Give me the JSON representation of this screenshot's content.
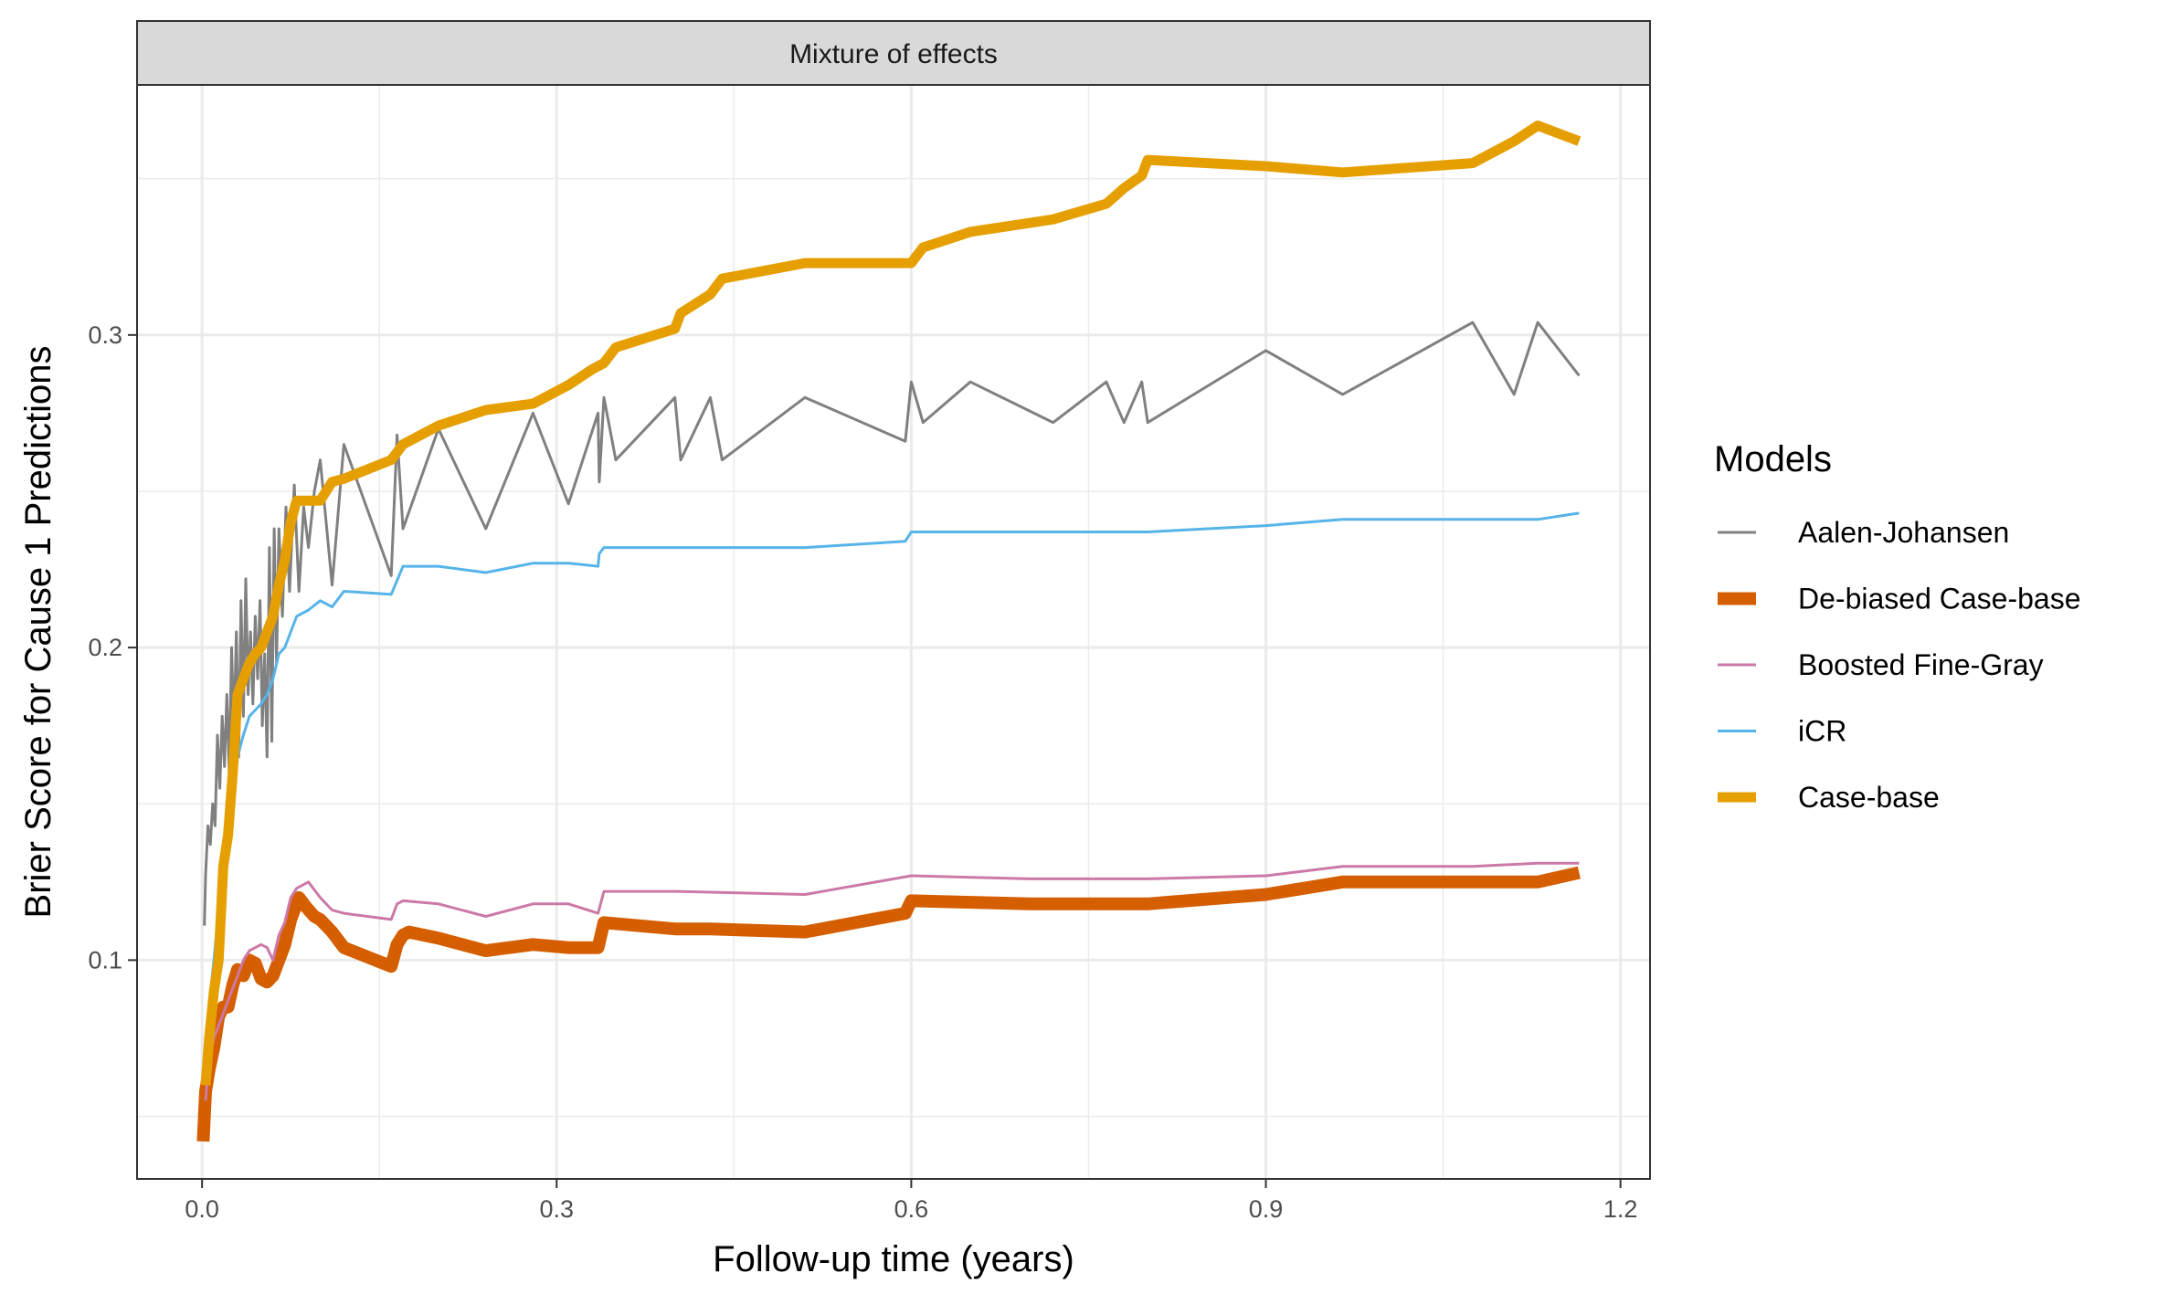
{
  "chart_data": {
    "type": "line",
    "facet_title": "Mixture of effects",
    "xlabel": "Follow-up time (years)",
    "ylabel": "Brier Score for Cause 1 Predictions",
    "xlim": [
      -0.055,
      1.225
    ],
    "ylim": [
      0.03,
      0.38
    ],
    "x_ticks": [
      0.0,
      0.3,
      0.6,
      0.9,
      1.2
    ],
    "x_tick_labels": [
      "0.0",
      "0.3",
      "0.6",
      "0.9",
      "1.2"
    ],
    "y_ticks": [
      0.1,
      0.2,
      0.3
    ],
    "y_tick_labels": [
      "0.1",
      "0.2",
      "0.3"
    ],
    "grid": true,
    "legend": {
      "title": "Models",
      "placement": "right"
    },
    "series": [
      {
        "name": "Aalen-Johansen",
        "color": "#808080",
        "width": 3,
        "x": [
          0.002,
          0.003,
          0.005,
          0.007,
          0.009,
          0.011,
          0.013,
          0.015,
          0.017,
          0.019,
          0.021,
          0.023,
          0.025,
          0.027,
          0.029,
          0.031,
          0.033,
          0.035,
          0.037,
          0.039,
          0.041,
          0.043,
          0.045,
          0.047,
          0.049,
          0.051,
          0.053,
          0.055,
          0.057,
          0.059,
          0.061,
          0.063,
          0.065,
          0.068,
          0.071,
          0.074,
          0.078,
          0.082,
          0.086,
          0.09,
          0.095,
          0.1,
          0.11,
          0.12,
          0.16,
          0.165,
          0.17,
          0.2,
          0.24,
          0.28,
          0.31,
          0.335,
          0.336,
          0.34,
          0.35,
          0.4,
          0.405,
          0.43,
          0.44,
          0.51,
          0.595,
          0.6,
          0.61,
          0.65,
          0.72,
          0.765,
          0.78,
          0.795,
          0.8,
          0.9,
          0.965,
          1.075,
          1.11,
          1.13,
          1.165
        ],
        "y": [
          0.111,
          0.127,
          0.143,
          0.137,
          0.15,
          0.143,
          0.172,
          0.155,
          0.178,
          0.162,
          0.185,
          0.16,
          0.2,
          0.172,
          0.205,
          0.165,
          0.215,
          0.178,
          0.222,
          0.185,
          0.205,
          0.182,
          0.21,
          0.19,
          0.215,
          0.175,
          0.198,
          0.165,
          0.232,
          0.17,
          0.238,
          0.195,
          0.238,
          0.21,
          0.245,
          0.218,
          0.252,
          0.218,
          0.245,
          0.232,
          0.25,
          0.26,
          0.22,
          0.265,
          0.223,
          0.268,
          0.238,
          0.27,
          0.238,
          0.275,
          0.246,
          0.275,
          0.253,
          0.28,
          0.26,
          0.28,
          0.26,
          0.28,
          0.26,
          0.28,
          0.266,
          0.285,
          0.272,
          0.285,
          0.272,
          0.285,
          0.272,
          0.285,
          0.272,
          0.295,
          0.281,
          0.304,
          0.281,
          0.304,
          0.287
        ]
      },
      {
        "name": "De-biased Case-base",
        "color": "#D55E00",
        "width": 14,
        "x": [
          0.001,
          0.003,
          0.006,
          0.01,
          0.014,
          0.018,
          0.022,
          0.026,
          0.03,
          0.035,
          0.04,
          0.045,
          0.05,
          0.055,
          0.06,
          0.065,
          0.07,
          0.075,
          0.082,
          0.088,
          0.095,
          0.1,
          0.11,
          0.12,
          0.16,
          0.165,
          0.17,
          0.175,
          0.2,
          0.24,
          0.28,
          0.31,
          0.335,
          0.34,
          0.4,
          0.43,
          0.51,
          0.595,
          0.6,
          0.7,
          0.8,
          0.9,
          0.965,
          1.075,
          1.13,
          1.165
        ],
        "y": [
          0.042,
          0.058,
          0.065,
          0.072,
          0.082,
          0.085,
          0.085,
          0.092,
          0.097,
          0.095,
          0.1,
          0.099,
          0.094,
          0.093,
          0.095,
          0.1,
          0.105,
          0.113,
          0.12,
          0.117,
          0.114,
          0.113,
          0.109,
          0.104,
          0.098,
          0.105,
          0.108,
          0.109,
          0.107,
          0.103,
          0.105,
          0.104,
          0.104,
          0.112,
          0.11,
          0.11,
          0.109,
          0.115,
          0.119,
          0.118,
          0.118,
          0.121,
          0.125,
          0.125,
          0.125,
          0.128
        ]
      },
      {
        "name": "Boosted Fine-Gray",
        "color": "#CC79A7",
        "width": 3,
        "x": [
          0.003,
          0.006,
          0.01,
          0.015,
          0.02,
          0.025,
          0.03,
          0.035,
          0.04,
          0.045,
          0.05,
          0.055,
          0.06,
          0.065,
          0.07,
          0.075,
          0.08,
          0.09,
          0.1,
          0.11,
          0.12,
          0.16,
          0.165,
          0.17,
          0.2,
          0.24,
          0.28,
          0.31,
          0.335,
          0.34,
          0.35,
          0.4,
          0.51,
          0.6,
          0.7,
          0.8,
          0.9,
          0.965,
          1.075,
          1.13,
          1.165
        ],
        "y": [
          0.055,
          0.068,
          0.075,
          0.08,
          0.085,
          0.09,
          0.095,
          0.1,
          0.103,
          0.104,
          0.105,
          0.104,
          0.1,
          0.108,
          0.112,
          0.12,
          0.123,
          0.125,
          0.12,
          0.116,
          0.115,
          0.113,
          0.118,
          0.119,
          0.118,
          0.114,
          0.118,
          0.118,
          0.115,
          0.122,
          0.122,
          0.122,
          0.121,
          0.127,
          0.126,
          0.126,
          0.127,
          0.13,
          0.13,
          0.131,
          0.131
        ]
      },
      {
        "name": "iCR",
        "color": "#56B4E9",
        "width": 3,
        "x": [
          0.003,
          0.006,
          0.01,
          0.015,
          0.02,
          0.025,
          0.03,
          0.035,
          0.04,
          0.045,
          0.05,
          0.055,
          0.06,
          0.065,
          0.07,
          0.075,
          0.08,
          0.09,
          0.1,
          0.11,
          0.12,
          0.16,
          0.17,
          0.2,
          0.24,
          0.28,
          0.31,
          0.335,
          0.336,
          0.34,
          0.35,
          0.4,
          0.51,
          0.595,
          0.6,
          0.7,
          0.8,
          0.9,
          0.965,
          1.075,
          1.13,
          1.165
        ],
        "y": [
          0.065,
          0.085,
          0.1,
          0.12,
          0.14,
          0.155,
          0.165,
          0.172,
          0.178,
          0.18,
          0.182,
          0.185,
          0.19,
          0.198,
          0.2,
          0.205,
          0.21,
          0.212,
          0.215,
          0.213,
          0.218,
          0.217,
          0.226,
          0.226,
          0.224,
          0.227,
          0.227,
          0.226,
          0.23,
          0.232,
          0.232,
          0.232,
          0.232,
          0.234,
          0.237,
          0.237,
          0.237,
          0.239,
          0.241,
          0.241,
          0.241,
          0.243
        ]
      },
      {
        "name": "Case-base",
        "color": "#E69F00",
        "width": 11,
        "x": [
          0.003,
          0.006,
          0.01,
          0.014,
          0.018,
          0.022,
          0.026,
          0.03,
          0.035,
          0.04,
          0.045,
          0.05,
          0.055,
          0.06,
          0.065,
          0.07,
          0.075,
          0.08,
          0.09,
          0.1,
          0.11,
          0.12,
          0.16,
          0.17,
          0.2,
          0.24,
          0.28,
          0.31,
          0.33,
          0.34,
          0.35,
          0.4,
          0.405,
          0.43,
          0.44,
          0.51,
          0.595,
          0.6,
          0.61,
          0.65,
          0.72,
          0.765,
          0.78,
          0.795,
          0.8,
          0.9,
          0.965,
          1.075,
          1.11,
          1.13,
          1.165
        ],
        "y": [
          0.06,
          0.075,
          0.09,
          0.1,
          0.13,
          0.14,
          0.16,
          0.185,
          0.19,
          0.195,
          0.198,
          0.2,
          0.205,
          0.21,
          0.22,
          0.228,
          0.24,
          0.247,
          0.247,
          0.247,
          0.253,
          0.254,
          0.26,
          0.265,
          0.271,
          0.276,
          0.278,
          0.284,
          0.289,
          0.291,
          0.296,
          0.302,
          0.307,
          0.313,
          0.318,
          0.323,
          0.323,
          0.323,
          0.328,
          0.333,
          0.337,
          0.342,
          0.347,
          0.351,
          0.356,
          0.354,
          0.352,
          0.355,
          0.362,
          0.367,
          0.362
        ]
      }
    ]
  }
}
